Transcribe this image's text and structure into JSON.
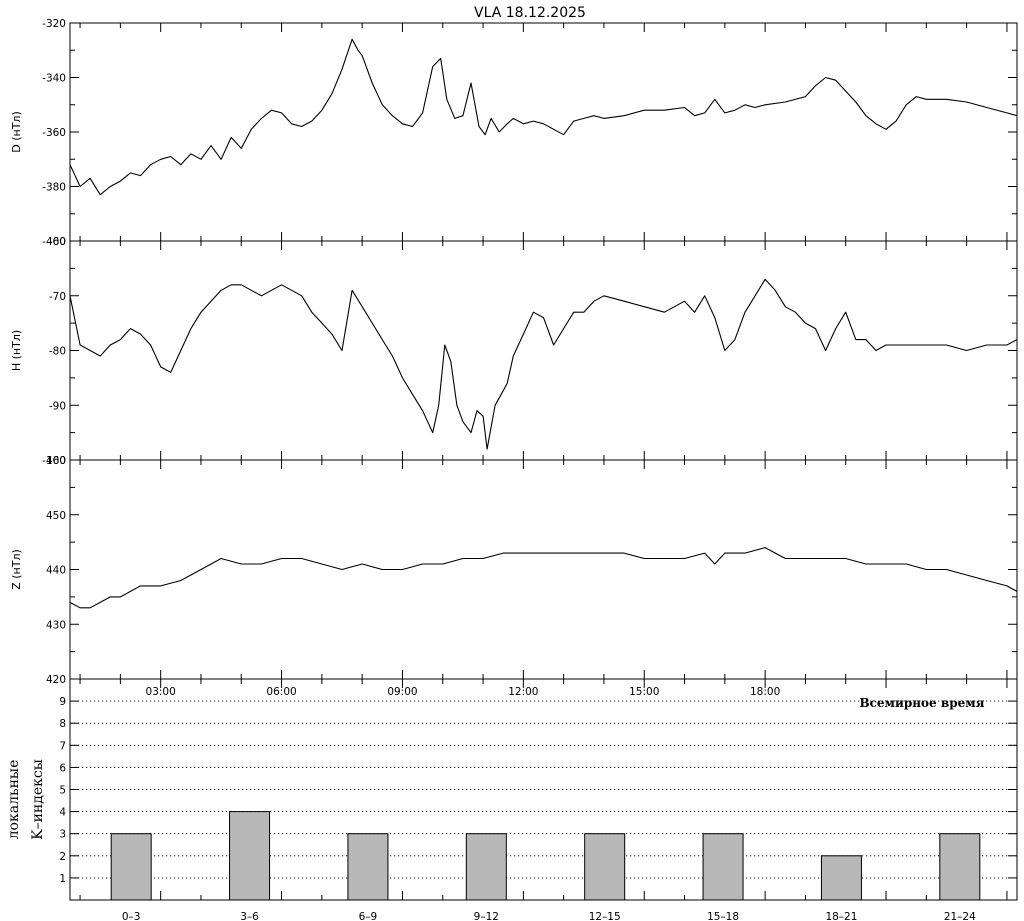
{
  "title": "VLA   18.12.2025",
  "time_axis": {
    "label": "Всемирное время",
    "ticks": [
      "03:00",
      "06:00",
      "09:00",
      "12:00",
      "15:00",
      "18:00"
    ],
    "tick_hours": [
      3,
      6,
      9,
      12,
      15,
      18
    ],
    "range_hours": [
      0.75,
      24.25
    ]
  },
  "chart_data": [
    {
      "type": "line",
      "ylabel": "D (нТл)",
      "ylim": [
        -400,
        -320
      ],
      "yticks": [
        "-320",
        "-340",
        "-360",
        "-380",
        "-400"
      ],
      "ytick_values": [
        -320,
        -340,
        -360,
        -380,
        -400
      ],
      "x_hours": [
        0.75,
        1.0,
        1.25,
        1.5,
        1.75,
        2.0,
        2.25,
        2.5,
        2.75,
        3.0,
        3.25,
        3.5,
        3.75,
        4.0,
        4.25,
        4.5,
        4.75,
        5.0,
        5.25,
        5.5,
        5.75,
        6.0,
        6.25,
        6.5,
        6.75,
        7.0,
        7.25,
        7.5,
        7.75,
        7.9,
        8.0,
        8.25,
        8.5,
        8.75,
        9.0,
        9.25,
        9.5,
        9.75,
        9.95,
        10.1,
        10.3,
        10.5,
        10.7,
        10.9,
        11.05,
        11.2,
        11.4,
        11.6,
        11.75,
        12.0,
        12.25,
        12.5,
        12.75,
        13.0,
        13.25,
        13.5,
        13.75,
        14.0,
        14.5,
        15.0,
        15.5,
        16.0,
        16.25,
        16.5,
        16.75,
        17.0,
        17.25,
        17.5,
        17.75,
        18.0,
        18.5,
        19.0,
        19.25,
        19.5,
        19.75,
        20.0,
        20.25,
        20.5,
        20.75,
        21.0,
        21.25,
        21.5,
        21.75,
        22.0,
        22.5,
        23.0,
        23.5,
        24.0,
        24.25
      ],
      "y": [
        -372,
        -380,
        -377,
        -383,
        -380,
        -378,
        -375,
        -376,
        -372,
        -370,
        -369,
        -372,
        -368,
        -370,
        -365,
        -370,
        -362,
        -366,
        -359,
        -355,
        -352,
        -353,
        -357,
        -358,
        -356,
        -352,
        -346,
        -337,
        -326,
        -330,
        -332,
        -342,
        -350,
        -354,
        -357,
        -358,
        -353,
        -336,
        -333,
        -348,
        -355,
        -354,
        -342,
        -358,
        -361,
        -355,
        -360,
        -357,
        -355,
        -357,
        -356,
        -357,
        -359,
        -361,
        -356,
        -355,
        -354,
        -355,
        -354,
        -352,
        -352,
        -351,
        -354,
        -353,
        -348,
        -353,
        -352,
        -350,
        -351,
        -350,
        -349,
        -347,
        -343,
        -340,
        -341,
        -345,
        -349,
        -354,
        -357,
        -359,
        -356,
        -350,
        -347,
        -348,
        -348,
        -349,
        -351,
        -353,
        -354
      ]
    },
    {
      "type": "line",
      "ylabel": "H (нТл)",
      "ylim": [
        -100,
        -60
      ],
      "yticks": [
        "-60",
        "-70",
        "-80",
        "-90",
        "-100"
      ],
      "ytick_values": [
        -60,
        -70,
        -80,
        -90,
        -100
      ],
      "x_hours": [
        0.75,
        1.0,
        1.25,
        1.5,
        1.75,
        2.0,
        2.25,
        2.5,
        2.75,
        3.0,
        3.25,
        3.5,
        3.75,
        4.0,
        4.25,
        4.5,
        4.75,
        5.0,
        5.25,
        5.5,
        5.75,
        6.0,
        6.25,
        6.5,
        6.75,
        7.0,
        7.25,
        7.5,
        7.75,
        8.0,
        8.25,
        8.5,
        8.75,
        9.0,
        9.25,
        9.5,
        9.75,
        9.9,
        10.05,
        10.2,
        10.35,
        10.5,
        10.7,
        10.85,
        11.0,
        11.1,
        11.2,
        11.3,
        11.45,
        11.6,
        11.75,
        12.0,
        12.25,
        12.5,
        12.75,
        13.0,
        13.25,
        13.5,
        13.75,
        14.0,
        14.5,
        15.0,
        15.5,
        16.0,
        16.25,
        16.5,
        16.75,
        17.0,
        17.25,
        17.5,
        17.75,
        18.0,
        18.25,
        18.5,
        18.75,
        19.0,
        19.25,
        19.5,
        19.75,
        20.0,
        20.25,
        20.5,
        20.75,
        21.0,
        21.5,
        22.0,
        22.5,
        23.0,
        23.5,
        24.0,
        24.25
      ],
      "y": [
        -70,
        -79,
        -80,
        -81,
        -79,
        -78,
        -76,
        -77,
        -79,
        -83,
        -84,
        -80,
        -76,
        -73,
        -71,
        -69,
        -68,
        -68,
        -69,
        -70,
        -69,
        -68,
        -69,
        -70,
        -73,
        -75,
        -77,
        -80,
        -69,
        -72,
        -75,
        -78,
        -81,
        -85,
        -88,
        -91,
        -95,
        -90,
        -79,
        -82,
        -90,
        -93,
        -95,
        -91,
        -92,
        -98,
        -94,
        -90,
        -88,
        -86,
        -81,
        -77,
        -73,
        -74,
        -79,
        -76,
        -73,
        -73,
        -71,
        -70,
        -71,
        -72,
        -73,
        -71,
        -73,
        -70,
        -74,
        -80,
        -78,
        -73,
        -70,
        -67,
        -69,
        -72,
        -73,
        -75,
        -76,
        -80,
        -76,
        -73,
        -78,
        -78,
        -80,
        -79,
        -79,
        -79,
        -79,
        -80,
        -79,
        -79,
        -78
      ]
    },
    {
      "type": "line",
      "ylabel": "Z (нТл)",
      "ylim": [
        420,
        460
      ],
      "yticks": [
        "460",
        "450",
        "440",
        "430",
        "420"
      ],
      "ytick_values": [
        460,
        450,
        440,
        430,
        420
      ],
      "x_hours": [
        0.75,
        1.0,
        1.25,
        1.5,
        1.75,
        2.0,
        2.5,
        3.0,
        3.5,
        4.0,
        4.5,
        5.0,
        5.5,
        6.0,
        6.5,
        7.0,
        7.5,
        8.0,
        8.5,
        9.0,
        9.5,
        10.0,
        10.5,
        11.0,
        11.5,
        12.0,
        12.5,
        13.0,
        13.5,
        14.0,
        14.5,
        15.0,
        15.5,
        16.0,
        16.5,
        16.75,
        17.0,
        17.5,
        18.0,
        18.5,
        19.0,
        19.5,
        20.0,
        20.5,
        21.0,
        21.5,
        22.0,
        22.5,
        23.0,
        23.5,
        24.0,
        24.25
      ],
      "y": [
        434,
        433,
        433,
        434,
        435,
        435,
        437,
        437,
        438,
        440,
        442,
        441,
        441,
        442,
        442,
        441,
        440,
        441,
        440,
        440,
        441,
        441,
        442,
        442,
        443,
        443,
        443,
        443,
        443,
        443,
        443,
        442,
        442,
        442,
        443,
        441,
        443,
        443,
        444,
        442,
        442,
        442,
        442,
        441,
        441,
        441,
        440,
        440,
        439,
        438,
        437,
        436
      ]
    },
    {
      "type": "bar",
      "ylabel": "локальные",
      "ylabel2": "K–индексы",
      "ylim": [
        0,
        10
      ],
      "yticks": [
        "1",
        "2",
        "3",
        "4",
        "5",
        "6",
        "7",
        "8",
        "9"
      ],
      "ytick_values": [
        1,
        2,
        3,
        4,
        5,
        6,
        7,
        8,
        9
      ],
      "grid": "dotted horizontal",
      "categories": [
        "0–3",
        "3–6",
        "6–9",
        "9–12",
        "12–15",
        "15–18",
        "18–21",
        "21–24"
      ],
      "values": [
        3,
        4,
        3,
        3,
        3,
        3,
        2,
        3
      ],
      "bar_color": "#b8b8b8"
    }
  ]
}
